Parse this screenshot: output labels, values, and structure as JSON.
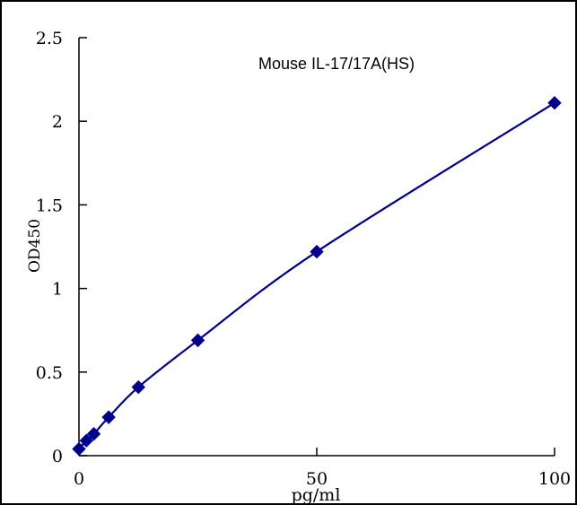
{
  "chart_data": {
    "type": "scatter",
    "title": "Mouse    IL-17/17A(HS)",
    "xlabel": "pg/ml",
    "ylabel": "OD450",
    "xlim": [
      0,
      100
    ],
    "ylim": [
      0,
      2.5
    ],
    "x_ticks": [
      {
        "value": 0,
        "label": "0"
      },
      {
        "value": 50,
        "label": "50"
      },
      {
        "value": 100,
        "label": "100"
      }
    ],
    "y_ticks": [
      {
        "value": 0,
        "label": "0"
      },
      {
        "value": 0.5,
        "label": "0.5"
      },
      {
        "value": 1,
        "label": "1"
      },
      {
        "value": 1.5,
        "label": "1.5"
      },
      {
        "value": 2,
        "label": "2"
      },
      {
        "value": 2.5,
        "label": "2.5"
      }
    ],
    "grid": false,
    "legend": "none",
    "series": [
      {
        "points": [
          {
            "x": 0,
            "y": 0.04
          },
          {
            "x": 1.56,
            "y": 0.09
          },
          {
            "x": 3.12,
            "y": 0.13
          },
          {
            "x": 6.25,
            "y": 0.23
          },
          {
            "x": 12.5,
            "y": 0.41
          },
          {
            "x": 25,
            "y": 0.69
          },
          {
            "x": 50,
            "y": 1.22
          },
          {
            "x": 100,
            "y": 2.11
          }
        ],
        "color": "#00008B",
        "marker": "diamond",
        "fit_line": true
      }
    ]
  }
}
